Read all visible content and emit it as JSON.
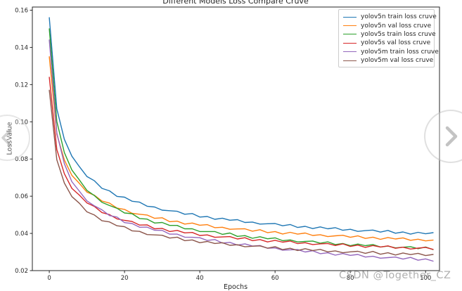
{
  "figure": {
    "title": "Different Models Loss Compare Cruve",
    "xlabel": "Epochs",
    "ylabel": "LossValue"
  },
  "watermark": {
    "text": "CSDN @Together_CZ"
  },
  "overlay": {
    "prev_icon": "chevron-left",
    "next_icon": "chevron-right"
  },
  "chart_data": {
    "type": "line",
    "title": "Different Models Loss Compare Cruve",
    "xlabel": "Epochs",
    "ylabel": "LossValue",
    "xlim": [
      -4.5,
      103.7
    ],
    "ylim": [
      0.02,
      0.1617
    ],
    "xticks": [
      0,
      20,
      40,
      60,
      80,
      100
    ],
    "yticks": [
      0.02,
      0.04,
      0.06,
      0.08,
      0.1,
      0.12,
      0.14,
      0.16
    ],
    "grid": false,
    "legend_position": "upper right",
    "x": [
      0,
      2,
      4,
      6,
      8,
      10,
      12,
      14,
      16,
      18,
      20,
      22,
      24,
      26,
      28,
      30,
      32,
      34,
      36,
      38,
      40,
      42,
      44,
      46,
      48,
      50,
      52,
      54,
      56,
      58,
      60,
      62,
      64,
      66,
      68,
      70,
      72,
      74,
      76,
      78,
      80,
      82,
      84,
      86,
      88,
      90,
      92,
      94,
      96,
      98,
      100,
      102
    ],
    "series": [
      {
        "name": "yolov5n train loss cruve",
        "color": "#1f77b4",
        "values": [
          0.156,
          0.107,
          0.0906,
          0.0815,
          0.0759,
          0.0706,
          0.0683,
          0.0642,
          0.0629,
          0.0599,
          0.0595,
          0.0573,
          0.0568,
          0.0546,
          0.0542,
          0.0525,
          0.0522,
          0.0519,
          0.0503,
          0.0507,
          0.0488,
          0.0491,
          0.0476,
          0.0482,
          0.0471,
          0.0474,
          0.0459,
          0.0461,
          0.045,
          0.0452,
          0.0453,
          0.0441,
          0.0448,
          0.0432,
          0.0438,
          0.0426,
          0.0435,
          0.0425,
          0.0431,
          0.0417,
          0.0422,
          0.0411,
          0.0415,
          0.0418,
          0.0407,
          0.0416,
          0.0401,
          0.0408,
          0.0396,
          0.0406,
          0.0398,
          0.0404
        ]
      },
      {
        "name": "yolov5n val loss cruve",
        "color": "#ff7f0e",
        "values": [
          0.135,
          0.0934,
          0.0795,
          0.0712,
          0.0669,
          0.0622,
          0.0605,
          0.0574,
          0.0563,
          0.0536,
          0.0529,
          0.0508,
          0.0503,
          0.0499,
          0.0481,
          0.0484,
          0.0463,
          0.0466,
          0.045,
          0.0456,
          0.0444,
          0.0447,
          0.0431,
          0.0433,
          0.0422,
          0.0424,
          0.0425,
          0.0412,
          0.042,
          0.0404,
          0.041,
          0.0397,
          0.0406,
          0.0396,
          0.0402,
          0.0389,
          0.0393,
          0.0383,
          0.0387,
          0.039,
          0.0379,
          0.0387,
          0.0373,
          0.038,
          0.0368,
          0.0378,
          0.037,
          0.0376,
          0.0363,
          0.0369,
          0.036,
          0.0364
        ]
      },
      {
        "name": "yolov5s train loss cruve",
        "color": "#2ca02c",
        "values": [
          0.15,
          0.1002,
          0.0835,
          0.0741,
          0.0687,
          0.0631,
          0.0603,
          0.0567,
          0.055,
          0.0535,
          0.051,
          0.0506,
          0.048,
          0.0477,
          0.0456,
          0.0459,
          0.0443,
          0.0443,
          0.0425,
          0.0425,
          0.041,
          0.041,
          0.041,
          0.0395,
          0.0402,
          0.0384,
          0.0388,
          0.0374,
          0.0382,
          0.0371,
          0.0376,
          0.0361,
          0.0365,
          0.0354,
          0.0357,
          0.0359,
          0.0347,
          0.0355,
          0.034,
          0.0346,
          0.0334,
          0.0343,
          0.0334,
          0.034,
          0.0327,
          0.0332,
          0.0322,
          0.0326,
          0.0329,
          0.0318,
          0.0327,
          0.0313
        ]
      },
      {
        "name": "yolov5s val loss cruve",
        "color": "#d62728",
        "values": [
          0.124,
          0.0851,
          0.0721,
          0.0642,
          0.0606,
          0.0564,
          0.0545,
          0.0512,
          0.0501,
          0.0478,
          0.047,
          0.0464,
          0.0445,
          0.0446,
          0.0425,
          0.0427,
          0.041,
          0.0416,
          0.0403,
          0.0405,
          0.0389,
          0.0392,
          0.0379,
          0.0381,
          0.0383,
          0.037,
          0.0377,
          0.0361,
          0.0367,
          0.0354,
          0.0363,
          0.0353,
          0.0359,
          0.0345,
          0.035,
          0.034,
          0.0344,
          0.0346,
          0.0335,
          0.0344,
          0.033,
          0.0337,
          0.0325,
          0.0335,
          0.0327,
          0.0333,
          0.032,
          0.0326,
          0.0316,
          0.0321,
          0.0325,
          0.0314
        ]
      },
      {
        "name": "yolov5m train loss cruve",
        "color": "#9467bd",
        "values": [
          0.144,
          0.094,
          0.0775,
          0.0678,
          0.0627,
          0.0575,
          0.0548,
          0.0527,
          0.0496,
          0.0488,
          0.0458,
          0.0453,
          0.0433,
          0.0434,
          0.0417,
          0.0416,
          0.0396,
          0.0396,
          0.038,
          0.0379,
          0.0377,
          0.0362,
          0.0367,
          0.0348,
          0.0352,
          0.0337,
          0.0344,
          0.0332,
          0.0335,
          0.032,
          0.0322,
          0.031,
          0.0312,
          0.0313,
          0.03,
          0.0307,
          0.0291,
          0.0296,
          0.0283,
          0.0292,
          0.0282,
          0.0287,
          0.0273,
          0.0277,
          0.0267,
          0.027,
          0.0273,
          0.0262,
          0.0271,
          0.0256,
          0.0263,
          0.0251
        ]
      },
      {
        "name": "yolov5m val loss cruve",
        "color": "#8c564b",
        "values": [
          0.117,
          0.0796,
          0.0671,
          0.0598,
          0.0562,
          0.0516,
          0.0499,
          0.0468,
          0.0462,
          0.0441,
          0.0436,
          0.0414,
          0.0411,
          0.0394,
          0.0392,
          0.039,
          0.0375,
          0.038,
          0.0361,
          0.0365,
          0.035,
          0.0357,
          0.0346,
          0.035,
          0.0336,
          0.0339,
          0.0328,
          0.0331,
          0.0333,
          0.0321,
          0.0329,
          0.0313,
          0.032,
          0.0308,
          0.0318,
          0.0308,
          0.0314,
          0.0301,
          0.0306,
          0.0296,
          0.0301,
          0.0304,
          0.0293,
          0.0303,
          0.0288,
          0.0296,
          0.0284,
          0.0295,
          0.0286,
          0.0293,
          0.0281,
          0.0287
        ]
      }
    ]
  }
}
